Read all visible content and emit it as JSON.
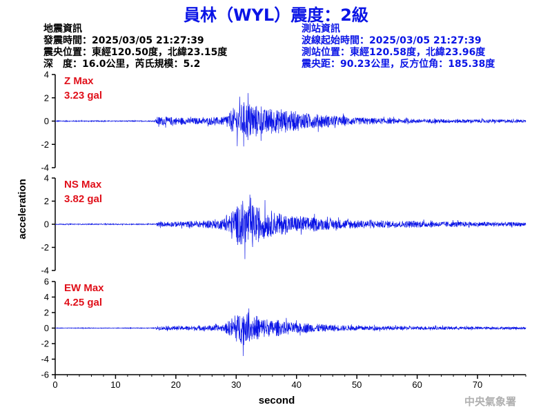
{
  "header": {
    "title": "員林（WYL）震度：2級"
  },
  "quake_info": {
    "heading": "地震資訊",
    "origin_time": "發震時間：2025/03/05 21:27:39",
    "epicenter": "震央位置：東經120.50度，北緯23.15度",
    "depth_magnitude": "深　度：16.0公里，芮氏規模：5.2"
  },
  "station_info": {
    "heading": "測站資訊",
    "wave_start": "波線起始時間：2025/03/05 21:27:39",
    "location": "測站位置：東經120.58度，北緯23.96度",
    "distance": "震央距：90.23公里，反方位角：185.38度"
  },
  "agency": "中央氣象署",
  "colors": {
    "trace": "#0a14e6",
    "label": "#e0101a",
    "title": "#0a14e6"
  },
  "chart_data": {
    "type": "line",
    "xlabel": "second",
    "ylabel": "acceleration",
    "xlim": [
      0,
      78
    ],
    "xticks": [
      0,
      10,
      20,
      30,
      40,
      50,
      60,
      70
    ],
    "grid": false,
    "channels": [
      {
        "name": "Z Max",
        "max_label": "3.23 gal",
        "ylim": [
          -4,
          4
        ],
        "yticks": [
          -4,
          -2,
          0,
          2,
          4
        ],
        "peak": 3.23,
        "envelope": [
          [
            0,
            0.08
          ],
          [
            16.5,
            0.08
          ],
          [
            17,
            0.8
          ],
          [
            20,
            0.6
          ],
          [
            24,
            0.5
          ],
          [
            28,
            0.7
          ],
          [
            29,
            1.6
          ],
          [
            30,
            2.4
          ],
          [
            31,
            2.9
          ],
          [
            32,
            3.23
          ],
          [
            33,
            2.6
          ],
          [
            35,
            2.2
          ],
          [
            37,
            1.9
          ],
          [
            40,
            1.5
          ],
          [
            43,
            1.2
          ],
          [
            46,
            0.9
          ],
          [
            50,
            0.6
          ],
          [
            55,
            0.45
          ],
          [
            60,
            0.35
          ],
          [
            70,
            0.3
          ],
          [
            78,
            0.25
          ]
        ]
      },
      {
        "name": "NS Max",
        "max_label": "3.82 gal",
        "ylim": [
          -4,
          4
        ],
        "yticks": [
          -4,
          -2,
          0,
          2,
          4
        ],
        "peak": 3.82,
        "envelope": [
          [
            0,
            0.08
          ],
          [
            16.5,
            0.08
          ],
          [
            17,
            0.35
          ],
          [
            20,
            0.45
          ],
          [
            24,
            0.55
          ],
          [
            28,
            0.9
          ],
          [
            29,
            2.0
          ],
          [
            30,
            3.2
          ],
          [
            31,
            3.82
          ],
          [
            32,
            3.3
          ],
          [
            34,
            2.6
          ],
          [
            36,
            2.0
          ],
          [
            38,
            1.6
          ],
          [
            40,
            1.4
          ],
          [
            45,
            0.9
          ],
          [
            50,
            0.7
          ],
          [
            55,
            0.6
          ],
          [
            60,
            0.55
          ],
          [
            65,
            0.45
          ],
          [
            70,
            0.4
          ],
          [
            78,
            0.35
          ]
        ]
      },
      {
        "name": "EW Max",
        "max_label": "4.25 gal",
        "ylim": [
          -6,
          6
        ],
        "yticks": [
          -6,
          -4,
          -2,
          0,
          2,
          4,
          6
        ],
        "peak": 4.25,
        "envelope": [
          [
            0,
            0.08
          ],
          [
            16.5,
            0.08
          ],
          [
            17,
            0.5
          ],
          [
            20,
            0.5
          ],
          [
            24,
            0.6
          ],
          [
            28,
            0.8
          ],
          [
            29,
            2.0
          ],
          [
            30,
            3.5
          ],
          [
            31,
            4.25
          ],
          [
            32,
            3.4
          ],
          [
            34,
            2.6
          ],
          [
            36,
            2.0
          ],
          [
            38,
            1.6
          ],
          [
            40,
            1.3
          ],
          [
            45,
            0.9
          ],
          [
            50,
            0.6
          ],
          [
            55,
            0.5
          ],
          [
            60,
            0.45
          ],
          [
            70,
            0.35
          ],
          [
            78,
            0.3
          ]
        ]
      }
    ]
  }
}
